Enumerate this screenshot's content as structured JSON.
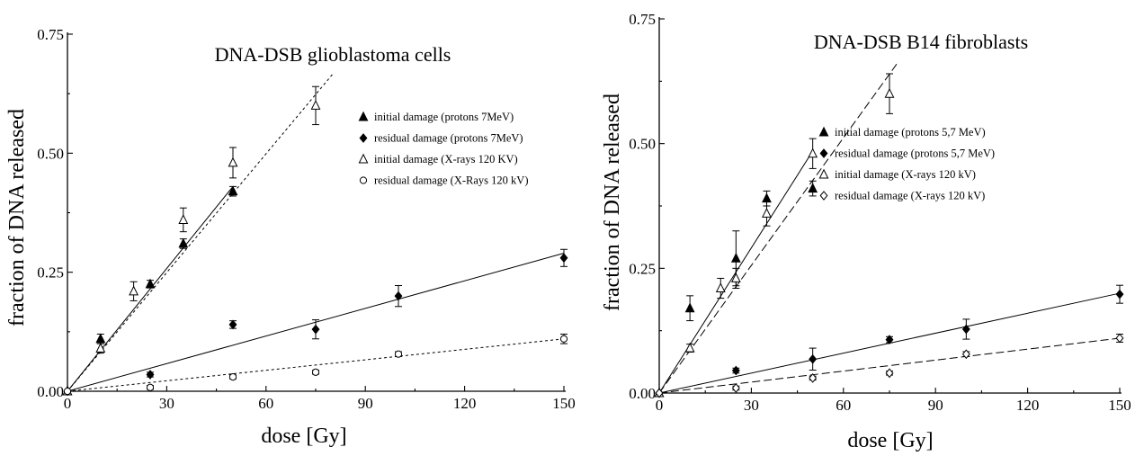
{
  "chart_data": [
    {
      "type": "scatter",
      "title": "DNA-DSB glioblastoma cells",
      "xlabel": "dose [Gy]",
      "ylabel": "fraction of DNA released",
      "xlim": [
        0,
        150
      ],
      "ylim": [
        0,
        0.75
      ],
      "xticks": [
        "0",
        "30",
        "60",
        "90",
        "120",
        "150"
      ],
      "yticks": [
        "0.00",
        "0.25",
        "0.50",
        "0.75"
      ],
      "legend_position": "right",
      "series": [
        {
          "name": "initial damage (protons 7MeV)",
          "marker": "filled-triangle",
          "x": [
            0,
            10,
            25,
            35,
            50
          ],
          "y": [
            0,
            0.11,
            0.225,
            0.31,
            0.42
          ],
          "err": [
            0,
            0.01,
            0.008,
            0.01,
            0.01
          ],
          "fit": {
            "x": [
              0,
              50
            ],
            "y": [
              0,
              0.43
            ],
            "dash": "solid"
          }
        },
        {
          "name": "residual damage (protons 7MeV)",
          "marker": "filled-diamond",
          "x": [
            0,
            25,
            50,
            75,
            100,
            150
          ],
          "y": [
            0,
            0.035,
            0.14,
            0.13,
            0.2,
            0.28
          ],
          "err": [
            0,
            0.005,
            0.008,
            0.02,
            0.022,
            0.018
          ],
          "fit": {
            "x": [
              0,
              150
            ],
            "y": [
              0,
              0.29
            ],
            "dash": "solid"
          }
        },
        {
          "name": "initial damage (X-rays 120 KV)",
          "marker": "open-triangle",
          "x": [
            0,
            10,
            20,
            35,
            50,
            75
          ],
          "y": [
            0,
            0.09,
            0.21,
            0.36,
            0.48,
            0.6
          ],
          "err": [
            0,
            0.01,
            0.02,
            0.025,
            0.032,
            0.04
          ],
          "fit": {
            "x": [
              0,
              80
            ],
            "y": [
              0,
              0.665
            ],
            "dash": "dashed"
          }
        },
        {
          "name": "residual damage (X-Rays 120 kV)",
          "marker": "open-circle",
          "x": [
            0,
            25,
            50,
            75,
            100,
            150
          ],
          "y": [
            0,
            0.008,
            0.03,
            0.04,
            0.078,
            0.11
          ],
          "err": [
            0,
            0.004,
            0.004,
            0.004,
            0.005,
            0.01
          ],
          "fit": {
            "x": [
              0,
              150
            ],
            "y": [
              0,
              0.11
            ],
            "dash": "dashed"
          }
        }
      ]
    },
    {
      "type": "scatter",
      "title": "DNA-DSB B14 fibroblasts",
      "xlabel": "dose [Gy]",
      "ylabel": "fraction of DNA released",
      "xlim": [
        0,
        150
      ],
      "ylim": [
        0,
        0.75
      ],
      "xticks": [
        "0",
        "30",
        "60",
        "90",
        "120",
        "150"
      ],
      "yticks": [
        "0.00",
        "0.25",
        "0.50",
        "0.75"
      ],
      "legend_position": "right",
      "series": [
        {
          "name": "initial damage (protons 5,7 MeV)",
          "marker": "filled-triangle",
          "x": [
            0,
            10,
            25,
            35,
            50
          ],
          "y": [
            0,
            0.17,
            0.27,
            0.39,
            0.41
          ],
          "err": [
            0,
            0.025,
            0.055,
            0.015,
            0.015
          ],
          "fit": {
            "x": [
              0,
              50
            ],
            "y": [
              0,
              0.485
            ],
            "dash": "solid"
          }
        },
        {
          "name": "residual damage (protons 5,7 MeV)",
          "marker": "filled-diamond",
          "x": [
            0,
            25,
            50,
            75,
            100,
            150
          ],
          "y": [
            0,
            0.045,
            0.068,
            0.107,
            0.128,
            0.198
          ],
          "err": [
            0,
            0.005,
            0.022,
            0.006,
            0.02,
            0.018
          ],
          "fit": {
            "x": [
              0,
              150
            ],
            "y": [
              0,
              0.2
            ],
            "dash": "solid"
          }
        },
        {
          "name": "initial damage (X-rays 120 kV)",
          "marker": "open-triangle",
          "x": [
            0,
            10,
            20,
            25,
            35,
            50,
            75
          ],
          "y": [
            0,
            0.09,
            0.21,
            0.23,
            0.36,
            0.48,
            0.6
          ],
          "err": [
            0,
            0.008,
            0.02,
            0.02,
            0.025,
            0.03,
            0.04
          ],
          "fit": {
            "x": [
              0,
              78
            ],
            "y": [
              0,
              0.665
            ],
            "dash": "dashed"
          }
        },
        {
          "name": "residual damage (X-rays 120 kV)",
          "marker": "open-diamond",
          "x": [
            0,
            25,
            50,
            75,
            100,
            150
          ],
          "y": [
            0,
            0.01,
            0.03,
            0.04,
            0.078,
            0.11
          ],
          "err": [
            0,
            0.004,
            0.004,
            0.004,
            0.005,
            0.008
          ],
          "fit": {
            "x": [
              0,
              150
            ],
            "y": [
              0,
              0.11
            ],
            "dash": "dashed"
          }
        }
      ]
    }
  ]
}
